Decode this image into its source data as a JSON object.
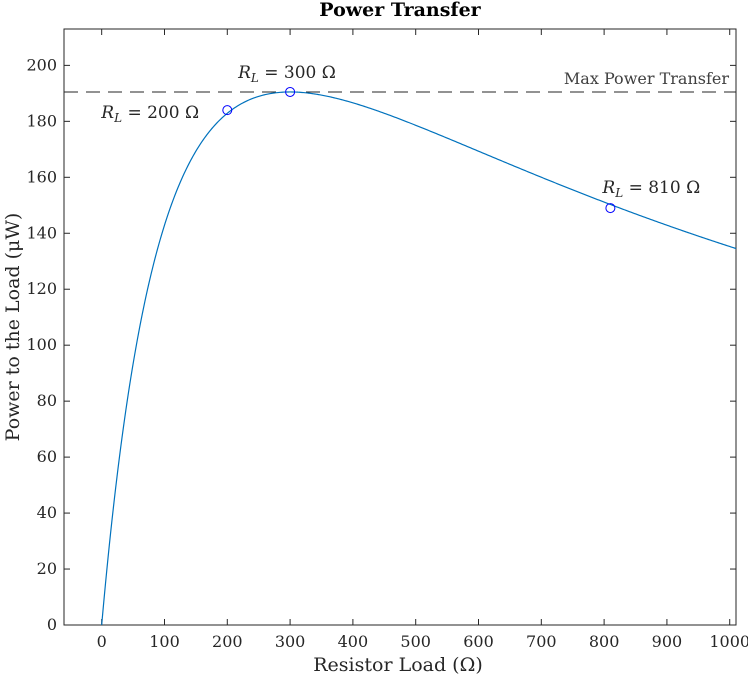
{
  "chart_data": {
    "type": "line",
    "title": "Power Transfer",
    "xlabel": "Resistor Load (Ω)",
    "ylabel": "Power to the Load (μW)",
    "xlim": [
      -60,
      1010
    ],
    "ylim": [
      0,
      213
    ],
    "xticks": [
      0,
      100,
      200,
      300,
      400,
      500,
      600,
      700,
      800,
      900,
      1000
    ],
    "yticks": [
      0,
      20,
      40,
      60,
      80,
      100,
      120,
      140,
      160,
      180,
      200
    ],
    "grid": false,
    "series": [
      {
        "model": "power_transfer",
        "source_resistance": 300,
        "max_power": 190.5,
        "x_range": [
          0,
          1010
        ],
        "color": "#0072BD"
      }
    ],
    "markers": [
      {
        "x": 200,
        "y": 184,
        "label_sym": "R",
        "label_sub": "L",
        "label_rest": " = 200 Ω",
        "color": "#0000FF"
      },
      {
        "x": 300,
        "y": 190.5,
        "label_sym": "R",
        "label_sub": "L",
        "label_rest": " = 300 Ω",
        "color": "#0000FF"
      },
      {
        "x": 810,
        "y": 149,
        "label_sym": "R",
        "label_sub": "L",
        "label_rest": " = 810 Ω",
        "color": "#0000FF"
      }
    ],
    "reference_line": {
      "y": 190.5,
      "label": "Max Power Transfer",
      "style": "dashed",
      "color": "#262626"
    }
  }
}
